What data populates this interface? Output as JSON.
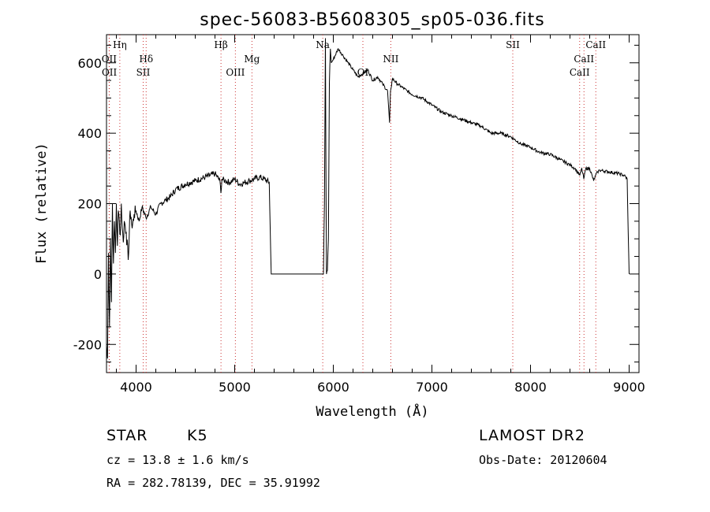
{
  "chart_data": {
    "type": "line",
    "title": "spec-56083-B5608305_sp05-036.fits",
    "xlabel": "Wavelength (Å)",
    "ylabel": "Flux (relative)",
    "xlim": [
      3700,
      9100
    ],
    "ylim": [
      -280,
      680
    ],
    "xticks": [
      4000,
      5000,
      6000,
      7000,
      8000,
      9000
    ],
    "yticks": [
      -200,
      0,
      200,
      400,
      600
    ],
    "grid": false,
    "line_color": "#000000",
    "marker_color": "#cc3333",
    "series": [
      {
        "x": [
          3700,
          3710,
          3720,
          3730,
          3740,
          3750,
          3760,
          3770,
          3780,
          3790,
          3800,
          3810,
          3820,
          3830,
          3840,
          3850,
          3860,
          3870,
          3880,
          3900,
          3920,
          3940,
          3950,
          3960,
          3980,
          4000,
          4030,
          4060,
          4100,
          4150,
          4200,
          4250,
          4300,
          4350,
          4400,
          4500,
          4600,
          4700,
          4800,
          4850,
          4860,
          4870,
          4900,
          4950,
          5000,
          5050,
          5100,
          5150,
          5200,
          5250,
          5300,
          5350,
          5370,
          5380,
          5600,
          5800,
          5900,
          5910,
          5920,
          5930,
          5940,
          5950,
          5960,
          5970,
          5980,
          6000,
          6050,
          6100,
          6150,
          6200,
          6250,
          6300,
          6350,
          6400,
          6450,
          6500,
          6550,
          6570,
          6580,
          6600,
          6650,
          6700,
          6750,
          6800,
          6900,
          7000,
          7100,
          7200,
          7300,
          7400,
          7500,
          7600,
          7700,
          7800,
          7900,
          8000,
          8100,
          8200,
          8300,
          8400,
          8450,
          8500,
          8520,
          8540,
          8560,
          8600,
          8640,
          8660,
          8680,
          8700,
          8800,
          8900,
          8950,
          8980,
          8990,
          9000
        ],
        "y": [
          -200,
          -240,
          60,
          -150,
          100,
          -80,
          200,
          30,
          150,
          60,
          200,
          80,
          180,
          150,
          110,
          200,
          130,
          90,
          150,
          120,
          40,
          180,
          160,
          130,
          170,
          180,
          150,
          190,
          160,
          190,
          170,
          200,
          210,
          220,
          240,
          255,
          265,
          275,
          285,
          265,
          230,
          270,
          265,
          260,
          270,
          255,
          260,
          265,
          270,
          275,
          270,
          260,
          0,
          0,
          0,
          0,
          0,
          200,
          670,
          0,
          10,
          100,
          540,
          640,
          600,
          610,
          640,
          620,
          600,
          580,
          560,
          570,
          580,
          550,
          560,
          540,
          520,
          430,
          520,
          555,
          540,
          530,
          520,
          510,
          500,
          480,
          460,
          450,
          440,
          430,
          420,
          400,
          400,
          390,
          370,
          360,
          345,
          340,
          325,
          310,
          300,
          280,
          300,
          270,
          300,
          300,
          265,
          280,
          290,
          295,
          290,
          285,
          280,
          270,
          120,
          0
        ]
      }
    ],
    "lines": [
      {
        "label": "Hη",
        "x": 3835,
        "row": 0
      },
      {
        "label": "OII",
        "x": 3727,
        "row": 1
      },
      {
        "label": "OII",
        "x": 3729,
        "row": 2
      },
      {
        "label": "Hδ",
        "x": 4102,
        "row": 1
      },
      {
        "label": "SII",
        "x": 4072,
        "row": 2
      },
      {
        "label": "Hβ",
        "x": 4861,
        "row": 0
      },
      {
        "label": "OIII",
        "x": 5007,
        "row": 2
      },
      {
        "label": "Mg",
        "x": 5175,
        "row": 1
      },
      {
        "label": "Na",
        "x": 5893,
        "row": 0
      },
      {
        "label": "OI",
        "x": 6300,
        "row": 2
      },
      {
        "label": "NII",
        "x": 6583,
        "row": 1
      },
      {
        "label": "SII",
        "x": 7820,
        "row": 0
      },
      {
        "label": "CaII",
        "x": 8662,
        "row": 0
      },
      {
        "label": "CaII",
        "x": 8542,
        "row": 1
      },
      {
        "label": "CaII",
        "x": 8498,
        "row": 2
      }
    ]
  },
  "info": {
    "class": "STAR",
    "subclass": "K5",
    "survey": "LAMOST DR2",
    "cz": "cz = 13.8 ± 1.6 km/s",
    "obs_date": "Obs-Date: 20120604",
    "coords": "RA = 282.78139, DEC =  35.91992"
  }
}
